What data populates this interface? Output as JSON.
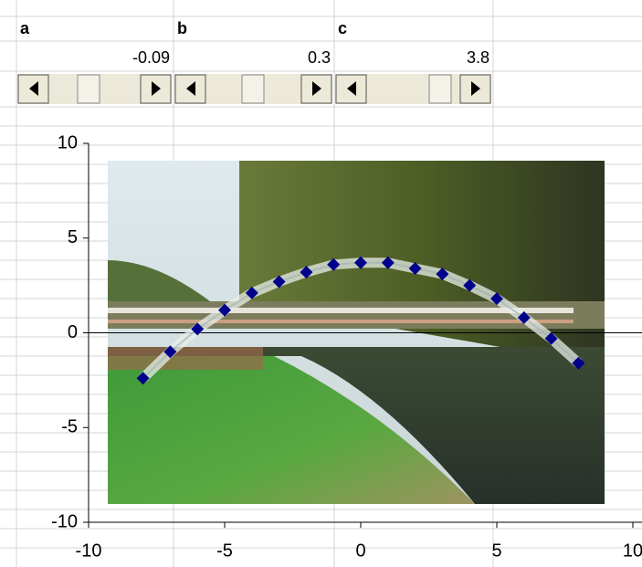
{
  "parameters": [
    {
      "name": "a",
      "value": -0.09
    },
    {
      "name": "b",
      "value": 0.3
    },
    {
      "name": "c",
      "value": 3.8
    }
  ],
  "chart_data": {
    "type": "scatter",
    "x": [
      -8,
      -7,
      -6,
      -5,
      -4,
      -3,
      -2,
      -1,
      0,
      1,
      2,
      3,
      4,
      5,
      6,
      7,
      8
    ],
    "values": [
      -2.4,
      -1.0,
      0.2,
      1.2,
      2.1,
      2.7,
      3.2,
      3.6,
      3.7,
      3.7,
      3.4,
      3.1,
      2.5,
      1.8,
      0.8,
      -0.3,
      -1.6
    ],
    "color": "#00008b",
    "xlim": [
      -10,
      10
    ],
    "ylim": [
      -10,
      10
    ],
    "xticks": [
      -10,
      -5,
      0,
      5,
      10
    ],
    "yticks": [
      -10,
      -5,
      0,
      5,
      10
    ]
  }
}
